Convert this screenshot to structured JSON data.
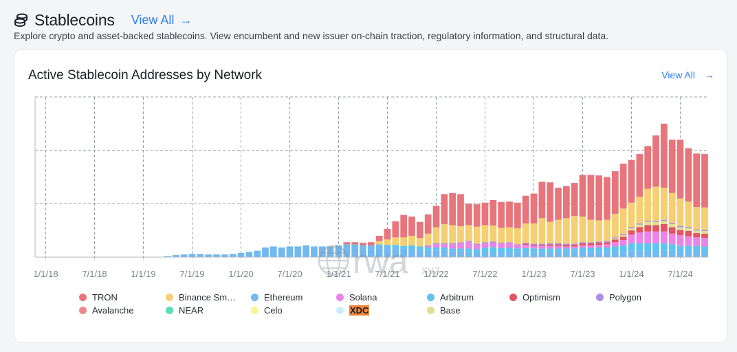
{
  "header": {
    "title": "Stablecoins",
    "view_all": "View All",
    "subtitle": "Explore crypto and asset-backed stablecoins. View encumbent and new issuer on-chain traction, regulatory information, and structural data."
  },
  "card": {
    "title": "Active Stablecoin Addresses by Network",
    "view_all": "View All"
  },
  "watermark": {
    "text": "rwa",
    "suffix": "xyz"
  },
  "legend": [
    {
      "label": "TRON",
      "color": "#e8747c"
    },
    {
      "label": "Binance Sm…",
      "color": "#f5cf72"
    },
    {
      "label": "Ethereum",
      "color": "#72b9f0"
    },
    {
      "label": "Solana",
      "color": "#ec83e6"
    },
    {
      "label": "Arbitrum",
      "color": "#5fc4ee"
    },
    {
      "label": "Optimism",
      "color": "#e5545f"
    },
    {
      "label": "Polygon",
      "color": "#a98ee5"
    },
    {
      "label": "Avalanche",
      "color": "#f08a8a"
    },
    {
      "label": "NEAR",
      "color": "#57e0b6"
    },
    {
      "label": "Celo",
      "color": "#fbf692"
    },
    {
      "label": "XDC",
      "color": "#cdecfb",
      "highlight": true
    },
    {
      "label": "Base",
      "color": "#dfe28c"
    }
  ],
  "chart_data": {
    "type": "bar",
    "stacked": true,
    "title": "Active Stablecoin Addresses by Network",
    "x_ticks": [
      "1/1/18",
      "7/1/18",
      "1/1/19",
      "7/1/19",
      "1/1/20",
      "7/1/20",
      "1/1/21",
      "7/1/21",
      "1/1/22",
      "7/1/22",
      "1/1/23",
      "7/1/23",
      "1/1/24",
      "7/1/24"
    ],
    "x_start": "2019-04",
    "ylim": [
      0,
      3
    ],
    "y_gridlines": [
      1,
      2,
      3
    ],
    "y_tick_labels_visible": false,
    "grid": true,
    "legend_position": "bottom",
    "series": [
      {
        "name": "Ethereum",
        "values": [
          0.02,
          0.04,
          0.05,
          0.06,
          0.06,
          0.05,
          0.05,
          0.05,
          0.06,
          0.08,
          0.1,
          0.12,
          0.18,
          0.2,
          0.18,
          0.2,
          0.2,
          0.22,
          0.2,
          0.2,
          0.2,
          0.22,
          0.24,
          0.24,
          0.22,
          0.22,
          0.22,
          0.2,
          0.18,
          0.16,
          0.16,
          0.14,
          0.12,
          0.12,
          0.12,
          0.1,
          0.1,
          0.09,
          0.09,
          0.1,
          0.09,
          0.09,
          0.1,
          0.1,
          0.11,
          0.1,
          0.1,
          0.1,
          0.1,
          0.1,
          0.1,
          0.11,
          0.1,
          0.1,
          0.1,
          0.1,
          0.1,
          0.12,
          0.12,
          0.12,
          0.12,
          0.12,
          0.12,
          0.11,
          0.11,
          0.11,
          0.1
        ]
      },
      {
        "name": "Arbitrum",
        "values": [
          0,
          0,
          0,
          0,
          0,
          0,
          0,
          0,
          0,
          0,
          0,
          0,
          0,
          0,
          0,
          0,
          0,
          0,
          0,
          0,
          0,
          0,
          0,
          0,
          0,
          0,
          0.02,
          0.03,
          0.05,
          0.05,
          0.06,
          0.06,
          0.06,
          0.06,
          0.06,
          0.06,
          0.06,
          0.07,
          0.06,
          0.08,
          0.1,
          0.08,
          0.08,
          0.06,
          0.06,
          0.06,
          0.06,
          0.06,
          0.06,
          0.06,
          0.06,
          0.07,
          0.07,
          0.08,
          0.08,
          0.1,
          0.12,
          0.14,
          0.14,
          0.14,
          0.14,
          0.14,
          0.12,
          0.1,
          0.1,
          0.1,
          0.1
        ]
      },
      {
        "name": "Solana",
        "values": [
          0,
          0,
          0,
          0,
          0,
          0,
          0,
          0,
          0,
          0,
          0,
          0,
          0,
          0,
          0,
          0,
          0,
          0,
          0,
          0,
          0,
          0,
          0,
          0,
          0,
          0,
          0,
          0,
          0,
          0,
          0,
          0,
          0.02,
          0.06,
          0.06,
          0.08,
          0.1,
          0.12,
          0.08,
          0.08,
          0.08,
          0.08,
          0.08,
          0.06,
          0.06,
          0.05,
          0.05,
          0.05,
          0.05,
          0.04,
          0.04,
          0.04,
          0.05,
          0.05,
          0.06,
          0.08,
          0.1,
          0.16,
          0.2,
          0.22,
          0.22,
          0.22,
          0.2,
          0.2,
          0.18,
          0.16,
          0.16
        ]
      },
      {
        "name": "Optimism",
        "values": [
          0,
          0,
          0,
          0,
          0,
          0,
          0,
          0,
          0,
          0,
          0,
          0,
          0,
          0,
          0,
          0,
          0,
          0,
          0,
          0,
          0,
          0,
          0,
          0,
          0,
          0,
          0,
          0,
          0,
          0,
          0,
          0,
          0,
          0,
          0,
          0,
          0,
          0,
          0,
          0,
          0,
          0,
          0,
          0,
          0.02,
          0.02,
          0.02,
          0.03,
          0.03,
          0.03,
          0.03,
          0.04,
          0.04,
          0.04,
          0.04,
          0.05,
          0.06,
          0.08,
          0.1,
          0.12,
          0.12,
          0.14,
          0.12,
          0.1,
          0.1,
          0.08,
          0.08
        ]
      },
      {
        "name": "Base",
        "values": [
          0,
          0,
          0,
          0,
          0,
          0,
          0,
          0,
          0,
          0,
          0,
          0,
          0,
          0,
          0,
          0,
          0,
          0,
          0,
          0,
          0,
          0,
          0,
          0,
          0,
          0,
          0,
          0,
          0,
          0,
          0,
          0,
          0,
          0,
          0,
          0,
          0,
          0,
          0,
          0,
          0,
          0,
          0,
          0,
          0,
          0,
          0,
          0,
          0,
          0,
          0,
          0,
          0,
          0,
          0,
          0.02,
          0.03,
          0.04,
          0.05,
          0.06,
          0.06,
          0.06,
          0.06,
          0.05,
          0.05,
          0.05,
          0.05
        ]
      },
      {
        "name": "Polygon",
        "values": [
          0,
          0,
          0,
          0,
          0,
          0,
          0,
          0,
          0,
          0,
          0,
          0,
          0,
          0,
          0,
          0,
          0,
          0,
          0,
          0,
          0,
          0,
          0,
          0,
          0,
          0,
          0,
          0,
          0,
          0,
          0,
          0,
          0.02,
          0.02,
          0.02,
          0.02,
          0.02,
          0.02,
          0.02,
          0.02,
          0.02,
          0.02,
          0.02,
          0.02,
          0.02,
          0.02,
          0.02,
          0.02,
          0.02,
          0.02,
          0.02,
          0.02,
          0.02,
          0.02,
          0.02,
          0.02,
          0.02,
          0.02,
          0.02,
          0.02,
          0.02,
          0.02,
          0.02,
          0.02,
          0.02,
          0.02,
          0.02
        ]
      },
      {
        "name": "Binance Sm…",
        "values": [
          0,
          0,
          0,
          0,
          0,
          0,
          0,
          0,
          0,
          0,
          0,
          0,
          0,
          0,
          0,
          0,
          0,
          0,
          0,
          0,
          0,
          0,
          0,
          0,
          0,
          0,
          0.06,
          0.1,
          0.14,
          0.16,
          0.18,
          0.16,
          0.22,
          0.3,
          0.36,
          0.34,
          0.3,
          0.3,
          0.32,
          0.32,
          0.3,
          0.28,
          0.28,
          0.3,
          0.36,
          0.38,
          0.48,
          0.4,
          0.44,
          0.48,
          0.52,
          0.48,
          0.42,
          0.4,
          0.4,
          0.44,
          0.48,
          0.46,
          0.5,
          0.6,
          0.64,
          0.6,
          0.56,
          0.52,
          0.48,
          0.42,
          0.42
        ]
      },
      {
        "name": "TRON",
        "values": [
          0,
          0,
          0,
          0,
          0,
          0,
          0,
          0,
          0,
          0,
          0,
          0,
          0,
          0,
          0,
          0,
          0,
          0,
          0,
          0,
          0,
          0,
          0.04,
          0.04,
          0.05,
          0.06,
          0.1,
          0.2,
          0.3,
          0.42,
          0.36,
          0.3,
          0.36,
          0.4,
          0.56,
          0.6,
          0.6,
          0.4,
          0.42,
          0.42,
          0.48,
          0.48,
          0.48,
          0.48,
          0.52,
          0.56,
          0.68,
          0.74,
          0.6,
          0.6,
          0.62,
          0.78,
          0.84,
          0.84,
          0.8,
          0.8,
          0.84,
          0.8,
          0.8,
          0.8,
          0.96,
          1.2,
          1.0,
          1.1,
          1.0,
          1.0,
          1.0
        ]
      }
    ]
  }
}
